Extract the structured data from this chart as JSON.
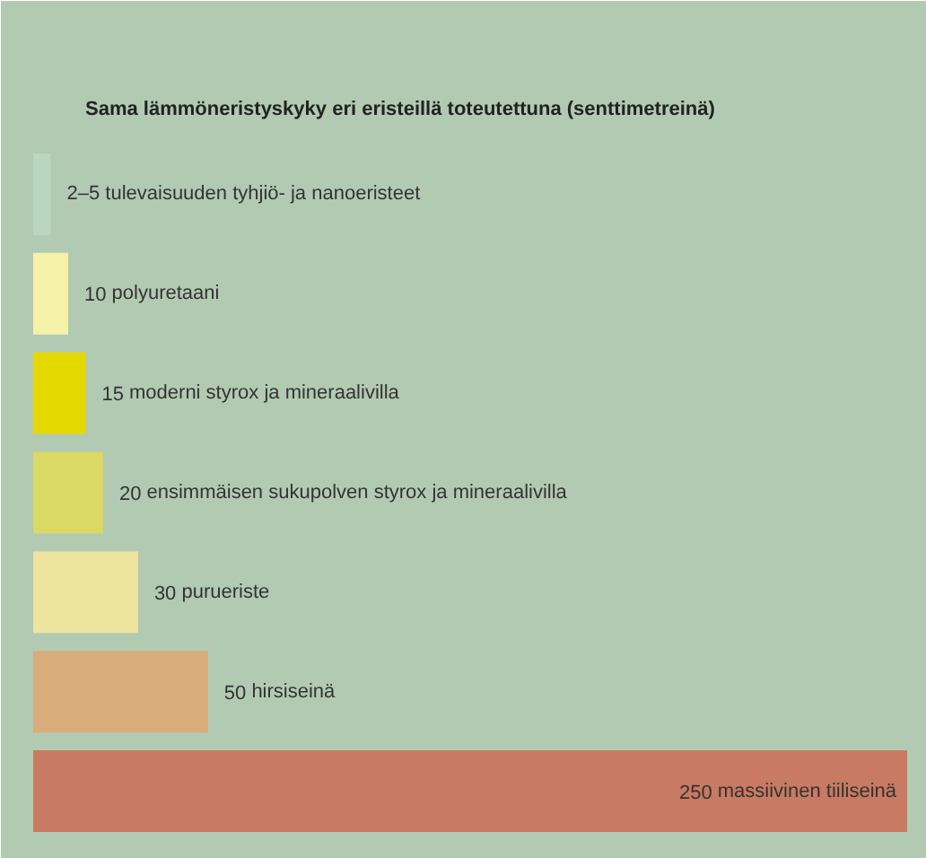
{
  "chart_data": {
    "type": "bar",
    "orientation": "horizontal",
    "title": "Sama lämmöneristyskyky eri eristeillä toteutettuna (senttimetreinä)",
    "categories": [
      "tulevaisuuden tyhjiö- ja nanoeristeet",
      "polyuretaani",
      "moderni styrox ja mineraalivilla",
      "ensimmäisen sukupolven styrox ja mineraalivilla",
      "purueriste",
      "hirsiseinä",
      "massiivinen tiiliseinä"
    ],
    "values": [
      5,
      10,
      15,
      20,
      30,
      50,
      250
    ],
    "value_labels": [
      "2–5",
      "10",
      "15",
      "20",
      "30",
      "50",
      "250"
    ],
    "colors": [
      "#b9d6be",
      "#f6f2a9",
      "#e4d900",
      "#d9d963",
      "#ede59e",
      "#d9ad79",
      "#c87a63"
    ],
    "tick_labels": false
  }
}
